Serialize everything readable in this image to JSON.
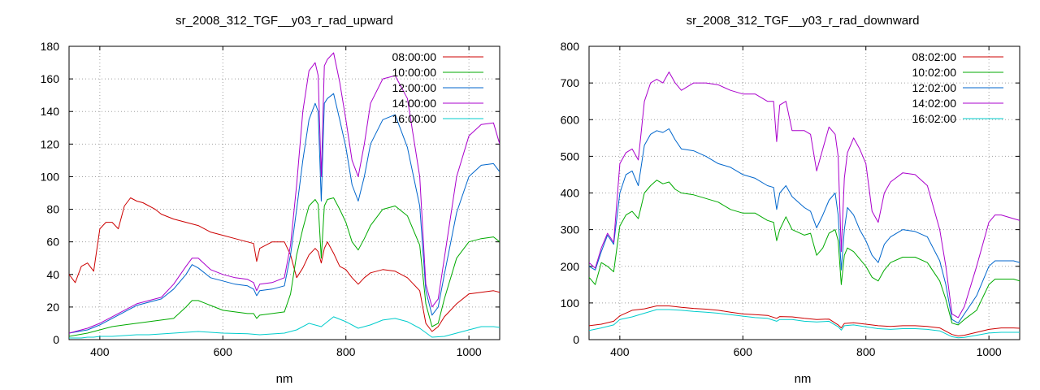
{
  "chart_data": [
    {
      "type": "line",
      "title": "sr_2008_312_TGF__y03_r_rad_upward",
      "xlabel": "nm",
      "ylabel": "",
      "xlim": [
        350,
        1050
      ],
      "ylim": [
        0,
        180
      ],
      "xticks": [
        400,
        600,
        800,
        1000
      ],
      "yticks": [
        0,
        20,
        40,
        60,
        80,
        100,
        120,
        140,
        160,
        180
      ],
      "grid": true,
      "legend_position": "top-right",
      "series": [
        {
          "name": "08:00:00",
          "color": "#cc0000",
          "x": [
            350,
            360,
            370,
            380,
            390,
            400,
            410,
            420,
            430,
            440,
            450,
            460,
            470,
            480,
            490,
            500,
            520,
            540,
            560,
            580,
            600,
            620,
            640,
            650,
            655,
            660,
            680,
            700,
            710,
            720,
            730,
            740,
            750,
            755,
            760,
            765,
            770,
            780,
            790,
            800,
            810,
            820,
            830,
            840,
            860,
            880,
            900,
            920,
            930,
            940,
            950,
            960,
            980,
            1000,
            1020,
            1040,
            1050
          ],
          "y": [
            40,
            35,
            45,
            47,
            42,
            68,
            72,
            72,
            68,
            82,
            87,
            85,
            84,
            82,
            80,
            77,
            74,
            72,
            70,
            66,
            64,
            62,
            60,
            59,
            48,
            56,
            60,
            60,
            52,
            38,
            44,
            52,
            56,
            54,
            47,
            56,
            60,
            53,
            45,
            43,
            38,
            34,
            38,
            41,
            43,
            42,
            38,
            30,
            10,
            5,
            8,
            14,
            22,
            28,
            29,
            30,
            29
          ]
        },
        {
          "name": "10:00:00",
          "color": "#00aa00",
          "x": [
            350,
            380,
            400,
            420,
            440,
            460,
            480,
            500,
            520,
            540,
            550,
            560,
            580,
            600,
            620,
            640,
            650,
            655,
            660,
            680,
            700,
            710,
            720,
            730,
            740,
            750,
            755,
            760,
            765,
            770,
            780,
            790,
            800,
            810,
            820,
            830,
            840,
            860,
            880,
            900,
            920,
            930,
            940,
            950,
            960,
            980,
            1000,
            1020,
            1040,
            1050
          ],
          "y": [
            2,
            4,
            6,
            8,
            9,
            10,
            11,
            12,
            13,
            20,
            24,
            24,
            21,
            18,
            17,
            16,
            16,
            13,
            15,
            16,
            17,
            28,
            52,
            68,
            82,
            86,
            83,
            50,
            82,
            86,
            87,
            80,
            72,
            60,
            55,
            62,
            70,
            80,
            82,
            76,
            58,
            22,
            8,
            10,
            25,
            50,
            60,
            62,
            63,
            60
          ]
        },
        {
          "name": "12:00:00",
          "color": "#0066cc",
          "x": [
            350,
            380,
            400,
            420,
            440,
            460,
            480,
            500,
            520,
            540,
            550,
            560,
            580,
            600,
            620,
            640,
            650,
            655,
            660,
            680,
            700,
            710,
            720,
            730,
            740,
            750,
            755,
            760,
            765,
            770,
            780,
            790,
            800,
            810,
            820,
            830,
            840,
            860,
            880,
            900,
            920,
            930,
            940,
            950,
            960,
            980,
            1000,
            1020,
            1040,
            1050
          ],
          "y": [
            4,
            6,
            9,
            13,
            17,
            21,
            23,
            25,
            31,
            40,
            46,
            44,
            38,
            36,
            34,
            33,
            31,
            27,
            30,
            31,
            33,
            52,
            80,
            110,
            135,
            145,
            140,
            85,
            145,
            148,
            151,
            135,
            118,
            95,
            85,
            100,
            120,
            135,
            138,
            118,
            82,
            30,
            15,
            20,
            40,
            78,
            100,
            107,
            108,
            103
          ]
        },
        {
          "name": "14:00:00",
          "color": "#aa00cc",
          "x": [
            350,
            380,
            400,
            420,
            440,
            460,
            480,
            500,
            520,
            540,
            550,
            560,
            580,
            600,
            620,
            640,
            650,
            655,
            660,
            680,
            700,
            710,
            720,
            730,
            740,
            750,
            755,
            760,
            765,
            770,
            780,
            790,
            800,
            810,
            820,
            830,
            840,
            860,
            880,
            900,
            920,
            930,
            940,
            950,
            960,
            980,
            1000,
            1020,
            1040,
            1050
          ],
          "y": [
            4,
            7,
            10,
            14,
            18,
            22,
            24,
            26,
            34,
            45,
            50,
            50,
            43,
            40,
            38,
            37,
            35,
            30,
            34,
            35,
            38,
            58,
            95,
            140,
            165,
            170,
            162,
            100,
            168,
            172,
            176,
            158,
            135,
            110,
            100,
            120,
            145,
            160,
            162,
            148,
            100,
            34,
            20,
            25,
            50,
            100,
            125,
            132,
            133,
            120
          ]
        },
        {
          "name": "16:00:00",
          "color": "#00cccc",
          "x": [
            350,
            360,
            370,
            380,
            390,
            400,
            420,
            440,
            460,
            480,
            500,
            520,
            540,
            560,
            580,
            600,
            620,
            640,
            660,
            680,
            700,
            720,
            740,
            760,
            780,
            800,
            820,
            840,
            860,
            880,
            900,
            920,
            940,
            960,
            980,
            1000,
            1020,
            1040,
            1050
          ],
          "y": [
            1,
            1,
            1,
            1.5,
            1.5,
            2,
            2,
            2.5,
            3,
            3,
            3.5,
            4,
            4.5,
            5,
            4.5,
            4,
            3.8,
            3.6,
            3,
            3.5,
            4,
            6,
            10,
            8,
            14,
            11,
            7,
            9,
            12,
            13,
            11,
            7,
            1.5,
            2,
            4,
            6,
            8,
            8,
            7.5
          ]
        }
      ]
    },
    {
      "type": "line",
      "title": "sr_2008_312_TGF__y03_r_rad_downward",
      "xlabel": "nm",
      "ylabel": "",
      "xlim": [
        350,
        1050
      ],
      "ylim": [
        0,
        800
      ],
      "xticks": [
        400,
        600,
        800,
        1000
      ],
      "yticks": [
        0,
        100,
        200,
        300,
        400,
        500,
        600,
        700,
        800
      ],
      "grid": true,
      "legend_position": "top-right",
      "series": [
        {
          "name": "08:02:00",
          "color": "#cc0000",
          "x": [
            350,
            370,
            390,
            400,
            420,
            440,
            460,
            480,
            500,
            520,
            540,
            560,
            580,
            600,
            620,
            640,
            655,
            660,
            680,
            700,
            720,
            740,
            755,
            760,
            765,
            780,
            800,
            820,
            840,
            860,
            880,
            900,
            920,
            940,
            950,
            960,
            980,
            1000,
            1020,
            1040,
            1050
          ],
          "y": [
            38,
            42,
            50,
            65,
            80,
            84,
            92,
            92,
            88,
            85,
            83,
            80,
            75,
            70,
            68,
            66,
            58,
            63,
            62,
            58,
            55,
            56,
            40,
            32,
            44,
            46,
            42,
            38,
            36,
            38,
            38,
            36,
            32,
            14,
            10,
            12,
            20,
            28,
            32,
            32,
            31
          ]
        },
        {
          "name": "10:02:00",
          "color": "#00aa00",
          "x": [
            350,
            360,
            370,
            380,
            390,
            400,
            410,
            420,
            430,
            440,
            450,
            460,
            470,
            480,
            490,
            500,
            520,
            540,
            560,
            580,
            600,
            620,
            640,
            650,
            655,
            660,
            670,
            680,
            700,
            710,
            720,
            730,
            740,
            750,
            755,
            760,
            765,
            770,
            780,
            790,
            800,
            810,
            820,
            830,
            840,
            860,
            880,
            900,
            920,
            930,
            940,
            950,
            960,
            980,
            1000,
            1010,
            1020,
            1040,
            1050
          ],
          "y": [
            170,
            150,
            210,
            200,
            185,
            310,
            340,
            350,
            330,
            400,
            420,
            435,
            425,
            430,
            410,
            400,
            395,
            385,
            375,
            355,
            345,
            345,
            325,
            320,
            270,
            300,
            335,
            300,
            285,
            290,
            230,
            250,
            290,
            300,
            270,
            150,
            230,
            250,
            240,
            220,
            200,
            170,
            160,
            190,
            210,
            225,
            225,
            210,
            160,
            110,
            45,
            40,
            55,
            80,
            150,
            165,
            165,
            165,
            160
          ]
        },
        {
          "name": "12:02:00",
          "color": "#0066cc",
          "x": [
            350,
            360,
            370,
            380,
            390,
            400,
            410,
            420,
            430,
            440,
            450,
            460,
            470,
            480,
            490,
            500,
            520,
            540,
            560,
            580,
            600,
            620,
            640,
            650,
            655,
            660,
            670,
            680,
            700,
            710,
            720,
            730,
            740,
            750,
            755,
            760,
            765,
            770,
            780,
            790,
            800,
            810,
            820,
            830,
            840,
            860,
            880,
            900,
            920,
            930,
            940,
            950,
            960,
            980,
            1000,
            1010,
            1020,
            1040,
            1050
          ],
          "y": [
            200,
            190,
            240,
            285,
            260,
            400,
            450,
            460,
            420,
            530,
            560,
            570,
            565,
            575,
            545,
            520,
            515,
            500,
            480,
            470,
            450,
            440,
            420,
            415,
            355,
            400,
            420,
            390,
            360,
            350,
            305,
            340,
            380,
            400,
            340,
            190,
            300,
            360,
            340,
            300,
            270,
            230,
            210,
            260,
            280,
            300,
            295,
            280,
            215,
            150,
            55,
            45,
            70,
            120,
            200,
            215,
            215,
            215,
            210
          ]
        },
        {
          "name": "14:02:00",
          "color": "#aa00cc",
          "x": [
            350,
            360,
            370,
            380,
            390,
            400,
            410,
            420,
            430,
            440,
            450,
            460,
            470,
            480,
            490,
            500,
            520,
            540,
            560,
            580,
            600,
            620,
            640,
            650,
            655,
            660,
            670,
            680,
            700,
            710,
            720,
            730,
            740,
            750,
            755,
            760,
            765,
            770,
            780,
            790,
            800,
            810,
            820,
            830,
            840,
            860,
            880,
            900,
            920,
            930,
            940,
            950,
            960,
            980,
            1000,
            1010,
            1020,
            1040,
            1050
          ],
          "y": [
            210,
            195,
            250,
            290,
            265,
            480,
            510,
            520,
            490,
            650,
            700,
            710,
            700,
            730,
            700,
            680,
            700,
            700,
            695,
            680,
            670,
            670,
            650,
            650,
            540,
            640,
            650,
            570,
            570,
            560,
            460,
            520,
            580,
            560,
            500,
            240,
            440,
            510,
            550,
            520,
            480,
            350,
            320,
            400,
            430,
            455,
            450,
            420,
            300,
            200,
            70,
            60,
            90,
            200,
            320,
            340,
            340,
            330,
            325
          ]
        },
        {
          "name": "16:02:00",
          "color": "#00cccc",
          "x": [
            350,
            370,
            390,
            400,
            420,
            440,
            460,
            480,
            500,
            520,
            540,
            560,
            580,
            600,
            620,
            640,
            655,
            660,
            680,
            700,
            720,
            740,
            755,
            760,
            765,
            780,
            800,
            820,
            840,
            860,
            880,
            900,
            920,
            940,
            950,
            960,
            980,
            1000,
            1020,
            1040,
            1050
          ],
          "y": [
            25,
            32,
            40,
            55,
            62,
            72,
            82,
            82,
            80,
            77,
            75,
            72,
            68,
            64,
            60,
            58,
            50,
            55,
            55,
            50,
            48,
            50,
            35,
            26,
            38,
            40,
            35,
            30,
            28,
            30,
            30,
            28,
            24,
            8,
            5,
            6,
            12,
            18,
            20,
            20,
            20
          ]
        }
      ]
    }
  ]
}
